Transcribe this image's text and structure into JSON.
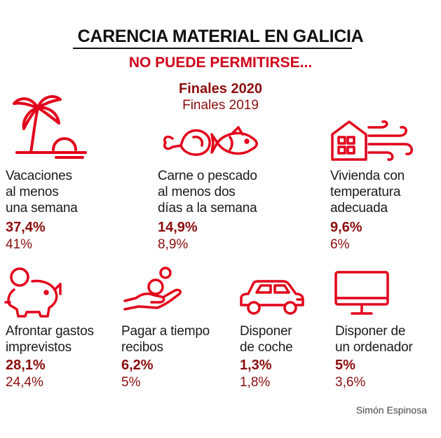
{
  "header": {
    "title": "CARENCIA MATERIAL EN GALICIA",
    "subtitle": "NO PUEDE PERMITIRSE...",
    "legend_2020": "Finales 2020",
    "legend_2019": "Finales 2019"
  },
  "colors": {
    "accent": "#e2001a",
    "value": "#8b0d0d",
    "text": "#1a1a1a"
  },
  "items": [
    {
      "icon": "palm-beach-icon",
      "label_lines": [
        "Vacaciones",
        "al menos",
        "una semana"
      ],
      "value_2020": "37,4%",
      "value_2019": "41%"
    },
    {
      "icon": "meat-fish-icon",
      "label_lines": [
        "Carne o pescado",
        "al menos dos",
        "días a la semana"
      ],
      "value_2020": "14,9%",
      "value_2019": "8,9%"
    },
    {
      "icon": "heated-house-icon",
      "label_lines": [
        "Vivienda con",
        "temperatura",
        "adecuada"
      ],
      "value_2020": "9,6%",
      "value_2019": "6%"
    },
    {
      "icon": "piggy-bank-icon",
      "label_lines": [
        "Afrontar gastos",
        "imprevistos"
      ],
      "value_2020": "28,1%",
      "value_2019": "24,4%"
    },
    {
      "icon": "hand-coin-icon",
      "label_lines": [
        "Pagar a tiempo",
        "recibos"
      ],
      "value_2020": "6,2%",
      "value_2019": "5%"
    },
    {
      "icon": "car-icon",
      "label_lines": [
        "Disponer",
        "de coche"
      ],
      "value_2020": "1,3%",
      "value_2019": "1,8%"
    },
    {
      "icon": "computer-monitor-icon",
      "label_lines": [
        "Disponer de",
        "un ordenador"
      ],
      "value_2020": "5%",
      "value_2019": "3,6%"
    }
  ],
  "credit": "Simón Espinosa"
}
